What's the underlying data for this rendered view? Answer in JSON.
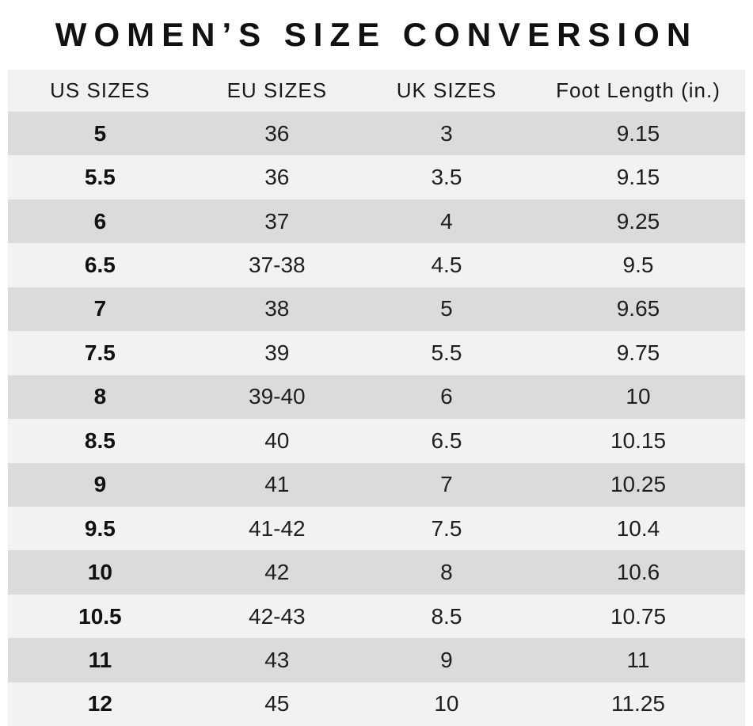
{
  "chart_data": {
    "type": "table",
    "title": "WOMEN’S SIZE CONVERSION",
    "columns": [
      "US SIZES",
      "EU SIZES",
      "UK SIZES",
      "Foot Length (in.)"
    ],
    "rows": [
      [
        "5",
        "36",
        "3",
        "9.15"
      ],
      [
        "5.5",
        "36",
        "3.5",
        "9.15"
      ],
      [
        "6",
        "37",
        "4",
        "9.25"
      ],
      [
        "6.5",
        "37-38",
        "4.5",
        "9.5"
      ],
      [
        "7",
        "38",
        "5",
        "9.65"
      ],
      [
        "7.5",
        "39",
        "5.5",
        "9.75"
      ],
      [
        "8",
        "39-40",
        "6",
        "10"
      ],
      [
        "8.5",
        "40",
        "6.5",
        "10.15"
      ],
      [
        "9",
        "41",
        "7",
        "10.25"
      ],
      [
        "9.5",
        "41-42",
        "7.5",
        "10.4"
      ],
      [
        "10",
        "42",
        "8",
        "10.6"
      ],
      [
        "10.5",
        "42-43",
        "8.5",
        "10.75"
      ],
      [
        "11",
        "43",
        "9",
        "11"
      ],
      [
        "12",
        "45",
        "10",
        "11.25"
      ]
    ],
    "layout": {
      "row_striping": "dark-light alternating, first data row dark",
      "bold_column": "US SIZES"
    },
    "colors": {
      "header_bg": "#f2f1f0",
      "row_dark": "#dadbdd",
      "row_light": "#f2f2f2",
      "text": "#1c1c1c"
    }
  }
}
